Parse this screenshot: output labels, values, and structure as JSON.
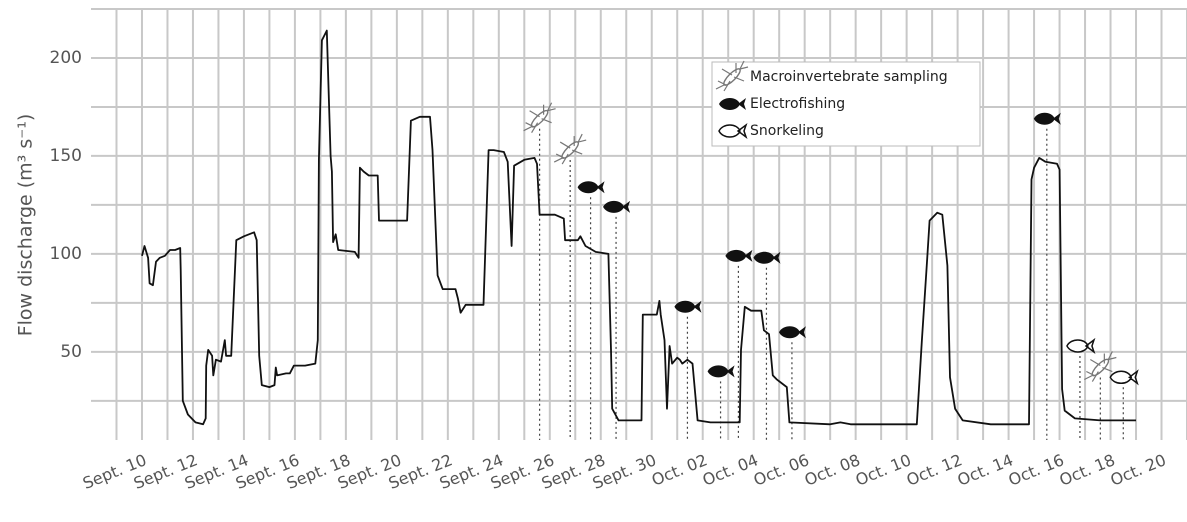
{
  "chart_data": {
    "type": "line",
    "y_label": "Flow discharge (m³ s⁻¹)",
    "color": "#111111",
    "grid": true,
    "legend": "upper right",
    "xlim": [
      -2,
      41
    ],
    "xticks": [
      {
        "value": 0,
        "label": "Sept. 10"
      },
      {
        "value": 2,
        "label": "Sept. 12"
      },
      {
        "value": 4,
        "label": "Sept. 14"
      },
      {
        "value": 6,
        "label": "Sept. 16"
      },
      {
        "value": 8,
        "label": "Sept. 18"
      },
      {
        "value": 10,
        "label": "Sept. 20"
      },
      {
        "value": 12,
        "label": "Sept. 22"
      },
      {
        "value": 14,
        "label": "Sept. 24"
      },
      {
        "value": 16,
        "label": "Sept. 26"
      },
      {
        "value": 18,
        "label": "Sept. 28"
      },
      {
        "value": 20,
        "label": "Sept. 30"
      },
      {
        "value": 22,
        "label": "Oct. 02"
      },
      {
        "value": 24,
        "label": "Oct. 04"
      },
      {
        "value": 26,
        "label": "Oct. 06"
      },
      {
        "value": 28,
        "label": "Oct. 08"
      },
      {
        "value": 30,
        "label": "Oct. 10"
      },
      {
        "value": 32,
        "label": "Oct. 12"
      },
      {
        "value": 34,
        "label": "Oct. 14"
      },
      {
        "value": 36,
        "label": "Oct. 16"
      },
      {
        "value": 38,
        "label": "Oct. 18"
      },
      {
        "value": 40,
        "label": "Oct. 20"
      }
    ],
    "ylim": [
      5,
      225
    ],
    "yticks": [
      50,
      100,
      150,
      200
    ],
    "x": [
      0,
      0.1,
      0.24,
      0.3,
      0.43,
      0.55,
      0.7,
      0.9,
      1.1,
      1.3,
      1.5,
      1.52,
      1.6,
      1.8,
      2.1,
      2.4,
      2.5,
      2.52,
      2.6,
      2.75,
      2.8,
      2.9,
      3.1,
      3.25,
      3.3,
      3.5,
      3.6,
      3.7,
      4.0,
      4.4,
      4.5,
      4.6,
      4.7,
      5.0,
      5.2,
      5.25,
      5.3,
      5.65,
      5.8,
      5.96,
      6.4,
      6.8,
      6.9,
      6.94,
      7.06,
      7.25,
      7.4,
      7.45,
      7.5,
      7.6,
      7.7,
      8.35,
      8.5,
      8.55,
      8.7,
      8.9,
      9.25,
      9.3,
      9.9,
      10.4,
      10.55,
      10.9,
      11.3,
      11.4,
      11.6,
      11.8,
      12.3,
      12.4,
      12.5,
      12.7,
      13.4,
      13.6,
      13.8,
      14.2,
      14.35,
      14.5,
      14.52,
      14.6,
      15.0,
      15.4,
      15.5,
      15.6,
      16.2,
      16.55,
      16.6,
      17.1,
      17.2,
      17.4,
      17.8,
      18.3,
      18.4,
      18.45,
      18.7,
      19.1,
      19.6,
      19.65,
      20.2,
      20.3,
      20.35,
      20.5,
      20.6,
      20.7,
      20.8,
      21.0,
      21.1,
      21.2,
      21.4,
      21.6,
      21.8,
      22.3,
      23.45,
      23.5,
      23.65,
      23.9,
      24.3,
      24.4,
      24.6,
      24.75,
      24.9,
      25.3,
      25.4,
      27.0,
      27.4,
      27.8,
      30.4,
      30.6,
      30.8,
      30.9,
      31.2,
      31.4,
      31.6,
      31.7,
      31.9,
      32.2,
      33.3,
      34.8,
      34.9,
      35.0,
      35.2,
      35.45,
      35.9,
      36.0,
      36.1,
      36.2,
      36.6,
      37.6,
      39.0
    ],
    "values": [
      99,
      104,
      98,
      85,
      84,
      96,
      98,
      99,
      102,
      102,
      103,
      92,
      25,
      18,
      14,
      13,
      16,
      43,
      51,
      48,
      38,
      46,
      45,
      56,
      48,
      48,
      77,
      107,
      109,
      111,
      107,
      48,
      33,
      32,
      33,
      42,
      38,
      39,
      39,
      43,
      43,
      44,
      56,
      148,
      209,
      214,
      150,
      142,
      106,
      110,
      102,
      101,
      98,
      144,
      142,
      140,
      140,
      117,
      117,
      117,
      168,
      170,
      170,
      153,
      89,
      82,
      82,
      77,
      70,
      74,
      74,
      153,
      153,
      152,
      147,
      104,
      112,
      145,
      148,
      149,
      146,
      120,
      120,
      118,
      107,
      107,
      109,
      104,
      101,
      100,
      51,
      21,
      15,
      15,
      15,
      69,
      69,
      76,
      69,
      56,
      21,
      53,
      44,
      47,
      46,
      44,
      46,
      44,
      15,
      14,
      14,
      51,
      73,
      71,
      71,
      61,
      59,
      38,
      36,
      32,
      14,
      13,
      14,
      13,
      13,
      56,
      96,
      117,
      121,
      120,
      94,
      37,
      21,
      15,
      13,
      13,
      138,
      144,
      149,
      147,
      146,
      143,
      31,
      20,
      16,
      15,
      15
    ],
    "markers": [
      {
        "name": "Macroinvertebrate sampling",
        "marker": "bug",
        "color": "#777777",
        "x": [
          15.6,
          16.8,
          37.6
        ],
        "values": [
          169,
          153,
          42
        ]
      },
      {
        "name": "Electrofishing",
        "marker": "fish",
        "color": "#111111",
        "x": [
          17.6,
          18.6,
          21.4,
          22.7,
          23.4,
          24.5,
          25.5,
          35.5
        ],
        "values": [
          134,
          124,
          73,
          40,
          99,
          98,
          60,
          169
        ]
      },
      {
        "name": "Snorkeling",
        "marker": "fish-outline",
        "color": "#111111",
        "x": [
          36.8,
          38.5
        ],
        "values": [
          53,
          37
        ]
      }
    ]
  }
}
